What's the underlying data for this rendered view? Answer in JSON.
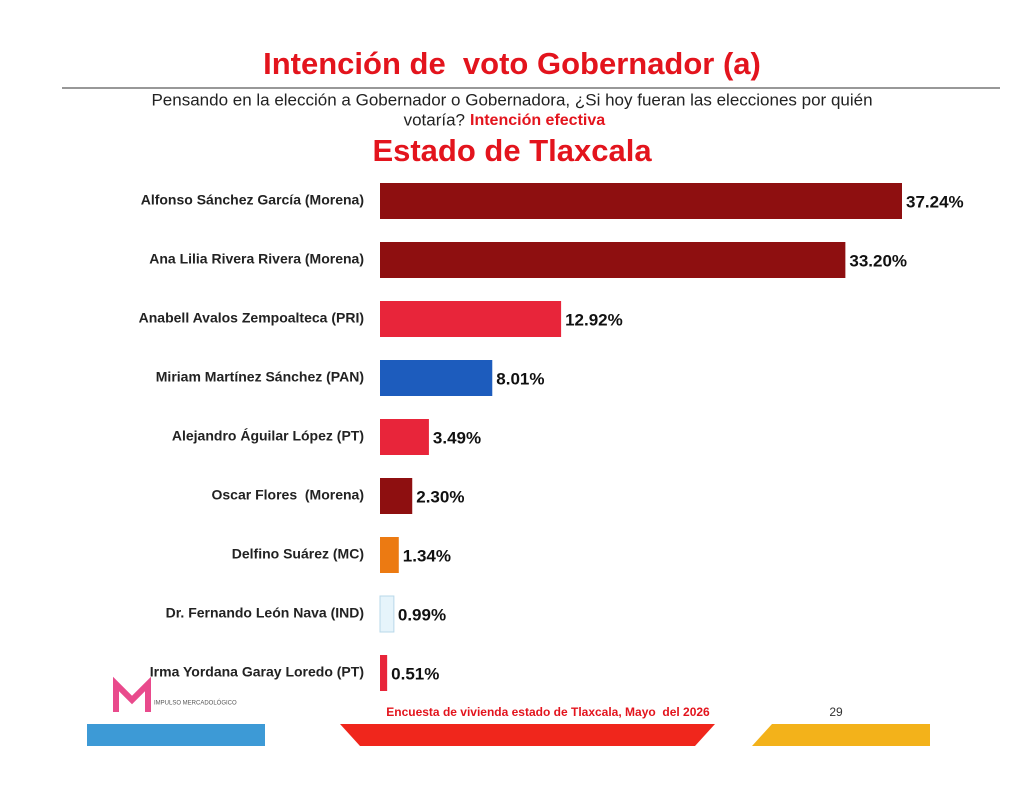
{
  "chart_data": {
    "type": "bar",
    "orientation": "horizontal",
    "title": "Intención de  voto Gobernador (a)",
    "subtitle": "Pensando en la elección a Gobernador o Gobernadora, ¿Si hoy fueran las elecciones por quién",
    "subtitle_line2": "votaría?",
    "subtitle_highlight": "Intención efectiva",
    "heading": "Estado de Tlaxcala",
    "categories": [
      "Alfonso Sánchez García (Morena)",
      "Ana Lilia Rivera Rivera (Morena)",
      "Anabell Avalos Zempoalteca (PRI)",
      "Miriam Martínez Sánchez (PAN)",
      "Alejandro Águilar López (PT)",
      "Oscar Flores  (Morena)",
      "Delfino Suárez (MC)",
      "Dr. Fernando León Nava (IND)",
      "Irma Yordana Garay Loredo (PT)"
    ],
    "values": [
      37.24,
      33.2,
      12.92,
      8.01,
      3.49,
      2.3,
      1.34,
      0.99,
      0.51
    ],
    "value_labels": [
      "37.24%",
      "33.20%",
      "12.92%",
      "8.01%",
      "3.49%",
      "2.30%",
      "1.34%",
      "0.99%",
      "0.51%"
    ],
    "colors": [
      "#8e0f10",
      "#8e0f10",
      "#e8253a",
      "#1d5cbd",
      "#e8253a",
      "#8e0f10",
      "#ec7a12",
      "#e6f4fb",
      "#e8253a"
    ],
    "footer": "Encuesta de vivienda estado de Tlaxcala, Mayo  del 2026",
    "page_number": "29",
    "logo_text": "IMPULSO MERCADOLÓGICO"
  }
}
